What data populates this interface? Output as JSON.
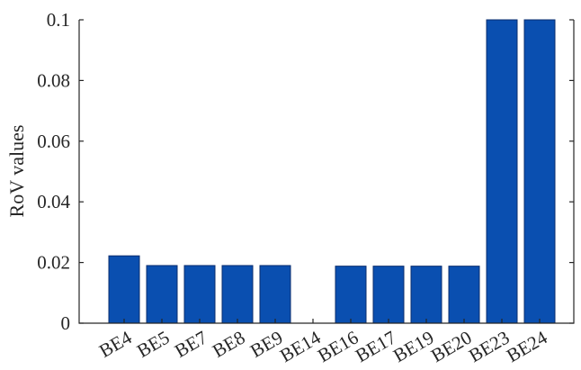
{
  "chart_data": {
    "type": "bar",
    "title": "",
    "xlabel": "",
    "ylabel": "RoV values",
    "categories": [
      "BE4",
      "BE5",
      "BE7",
      "BE8",
      "BE9",
      "BE14",
      "BE16",
      "BE17",
      "BE19",
      "BE20",
      "BE23",
      "BE24"
    ],
    "values": [
      0.0222,
      0.019,
      0.019,
      0.019,
      0.019,
      0,
      0.0188,
      0.0188,
      0.0188,
      0.0188,
      0.1,
      0.1
    ],
    "ylim": [
      0,
      0.1
    ],
    "yticks": [
      0,
      0.02,
      0.04,
      0.06,
      0.08,
      0.1
    ],
    "ytick_labels": [
      "0",
      "0.02",
      "0.04",
      "0.06",
      "0.08",
      "0.1"
    ],
    "bar_color": "#0a4fb0",
    "grid": false,
    "legend": "none"
  }
}
